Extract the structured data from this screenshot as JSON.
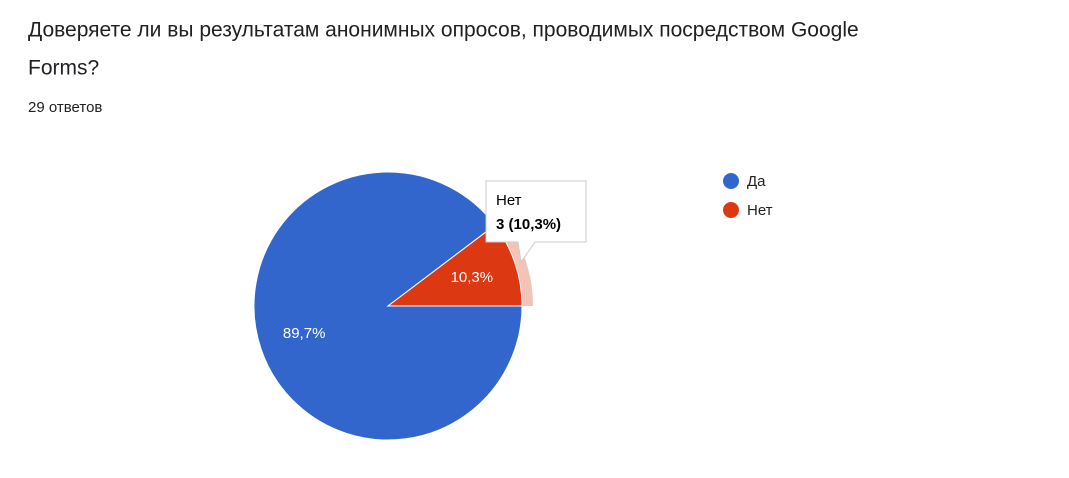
{
  "chart_data": {
    "type": "pie",
    "title_lines": [
      "Доверяете ли вы результатам анонимных опросов, проводимых посредством Google",
      "Forms?"
    ],
    "subtitle": "29 ответов",
    "categories": [
      "Да",
      "Нет"
    ],
    "values": [
      89.7,
      10.3
    ],
    "value_labels": [
      "89,7%",
      "10,3%"
    ],
    "colors": [
      "#3366cc",
      "#dc3912"
    ],
    "legend": "right",
    "tooltip": {
      "category": 1,
      "text": "3 (10,3%)"
    }
  }
}
